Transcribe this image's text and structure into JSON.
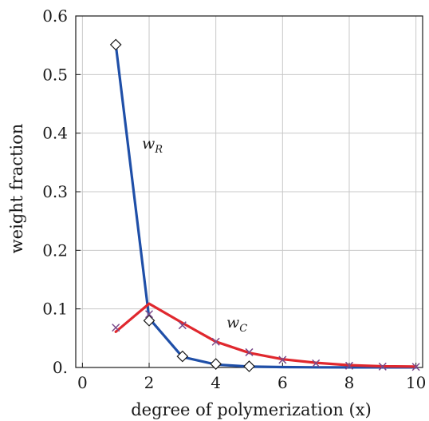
{
  "chart_data": {
    "type": "line",
    "xlabel": "degree of polymerization (x)",
    "ylabel": "weight fraction",
    "xlim": [
      -0.2,
      10.2
    ],
    "ylim": [
      0,
      0.6
    ],
    "xticks": [
      "0",
      "2",
      "4",
      "6",
      "8",
      "10"
    ],
    "xtick_values": [
      0,
      2,
      4,
      6,
      8,
      10
    ],
    "yticks": [
      "0.",
      "0.1",
      "0.2",
      "0.3",
      "0.4",
      "0.5",
      "0.6"
    ],
    "ytick_values": [
      0,
      0.1,
      0.2,
      0.3,
      0.4,
      0.5,
      0.6
    ],
    "grid": true,
    "series": [
      {
        "key": "w_R",
        "label_main": "w",
        "label_sub": "R",
        "color": "#1f4fa8",
        "line_x": [
          1,
          2,
          3,
          4,
          5,
          6,
          7,
          8,
          9,
          10
        ],
        "line_y": [
          0.551,
          0.084,
          0.018,
          0.005,
          0.0015,
          0.0007,
          0.0003,
          0.0002,
          0.0001,
          0.0001
        ],
        "marker": "diamond",
        "marker_x": [
          1,
          2,
          3,
          4,
          5
        ],
        "marker_y": [
          0.551,
          0.08,
          0.019,
          0.006,
          0.002
        ]
      },
      {
        "key": "w_C",
        "label_main": "w",
        "label_sub": "C",
        "color": "#e0282e",
        "line_x": [
          1,
          2,
          3,
          4,
          5,
          6,
          7,
          8,
          9,
          10
        ],
        "line_y": [
          0.061,
          0.109,
          0.076,
          0.044,
          0.025,
          0.014,
          0.008,
          0.004,
          0.002,
          0.0015
        ],
        "marker": "x",
        "marker_color": "#7a4a8a",
        "marker_x": [
          1,
          2,
          3,
          4,
          5,
          6,
          7,
          8,
          9,
          10
        ],
        "marker_y": [
          0.068,
          0.091,
          0.072,
          0.044,
          0.026,
          0.013,
          0.007,
          0.003,
          0.0015,
          0.001
        ]
      }
    ]
  }
}
